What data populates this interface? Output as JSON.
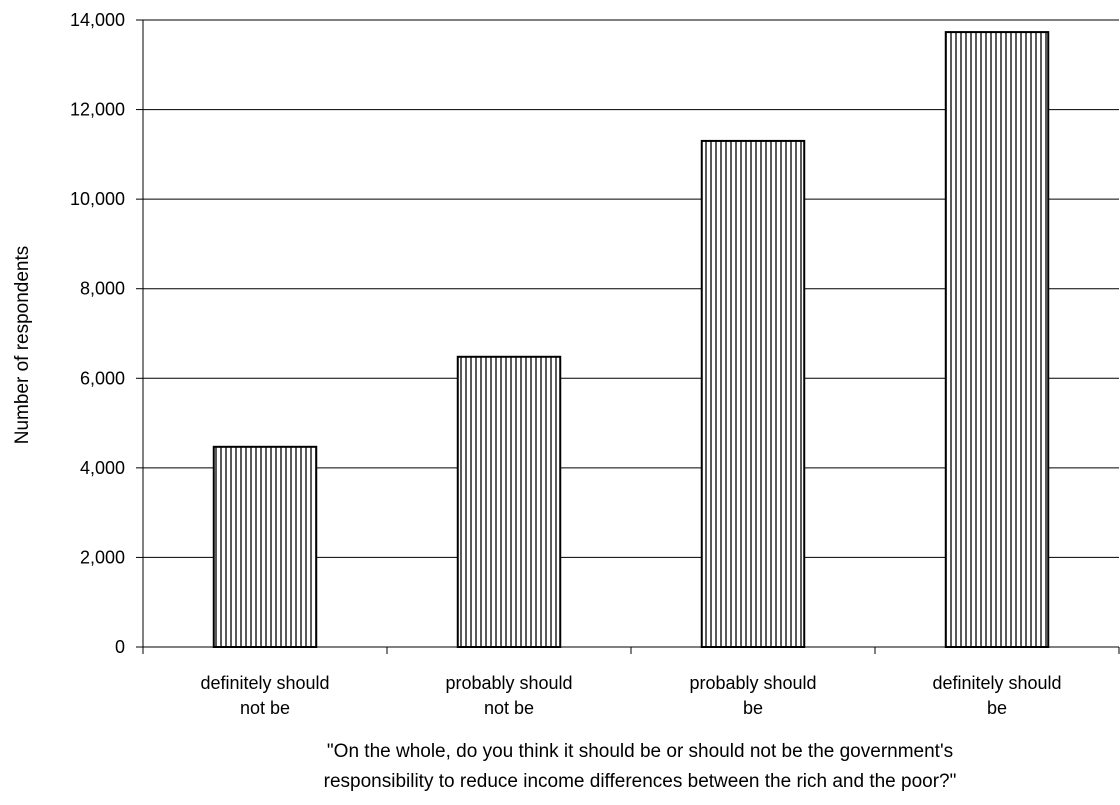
{
  "chart_data": {
    "type": "bar",
    "categories": [
      [
        "definitely should",
        "not be"
      ],
      [
        "probably should",
        "not be"
      ],
      [
        "probably should",
        "be"
      ],
      [
        "definitely should",
        "be"
      ]
    ],
    "values": [
      4470,
      6480,
      11300,
      13730
    ],
    "xlabel": [
      "\"On the whole, do you think it should be or should not be the government's",
      "responsibility to reduce income differences between the rich and the poor?\""
    ],
    "ylabel": "Number of respondents",
    "ylim": [
      0,
      14000
    ],
    "yticks": [
      "0",
      "2,000",
      "4,000",
      "6,000",
      "8,000",
      "10,000",
      "12,000",
      "14,000"
    ],
    "ytick_values": [
      0,
      2000,
      4000,
      6000,
      8000,
      10000,
      12000,
      14000
    ],
    "grid": true,
    "bar_fill": "vertical-stripes",
    "colors": {
      "bar_stroke": "#000000",
      "bar_stripe": "#000000",
      "bar_background": "#ffffff",
      "grid": "#000000",
      "axis": "#000000"
    }
  }
}
